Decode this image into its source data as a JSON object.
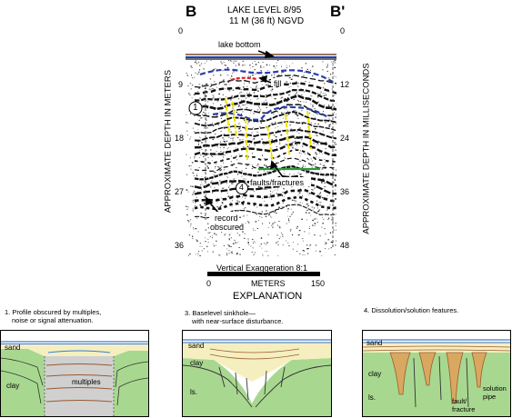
{
  "header": {
    "letter_left": "B",
    "letter_right": "B'",
    "lake_level": "LAKE LEVEL 8/95",
    "elevation": "11 M (36 ft) NGVD"
  },
  "axes": {
    "left_label": "APPROXIMATE DEPTH IN METERS",
    "right_label": "APPROXIMATE DEPTH IN MILLISECONDS",
    "left_ticks": [
      "0",
      "9",
      "18",
      "27",
      "36"
    ],
    "right_ticks": [
      "0",
      "12",
      "24",
      "36",
      "48"
    ]
  },
  "annotations": {
    "lake_bottom": "lake bottom",
    "fill": "fill",
    "marker_1": "1",
    "marker_4": "4",
    "faults": "faults/fractures",
    "record_obscured_1": "record",
    "record_obscured_2": "obscured"
  },
  "scale": {
    "exaggeration": "Vertical Exaggeration 8:1",
    "start": "0",
    "unit": "METERS",
    "end": "150"
  },
  "explanation": {
    "title": "EXPLANATION",
    "item1_line1": "1. Profile obscured by multiples,",
    "item1_line2": "noise or signal attenuation.",
    "item3_line1": "3. Baselevel sinkhole—",
    "item3_line2": "with near-surface disturbance.",
    "item4_line1": "4. Dissolution/solution features."
  },
  "panel1": {
    "sand": "sand",
    "clay": "clay",
    "multiples": "multiples"
  },
  "panel3": {
    "sand": "sand",
    "clay": "clay",
    "ls": "ls."
  },
  "panel4": {
    "sand": "sand",
    "clay": "clay",
    "ls": "ls.",
    "solution_1": "solution",
    "solution_2": "pipe",
    "fault_1": "fault/",
    "fault_2": "fracture"
  },
  "colors": {
    "lake_bottom": "#1f3fbf",
    "reflector_blue": "#2a3bb0",
    "fill_red": "#e02020",
    "fault_yellow": "#f2e600",
    "reflector_green": "#2e9a3a",
    "sand": "#f5efc0",
    "clay": "#a8d890",
    "multiples_gray": "#d0d0d0",
    "water_line": "#3a7ad8",
    "layer_brown": "#9a5a30",
    "pipe_tan": "#d9a860"
  }
}
